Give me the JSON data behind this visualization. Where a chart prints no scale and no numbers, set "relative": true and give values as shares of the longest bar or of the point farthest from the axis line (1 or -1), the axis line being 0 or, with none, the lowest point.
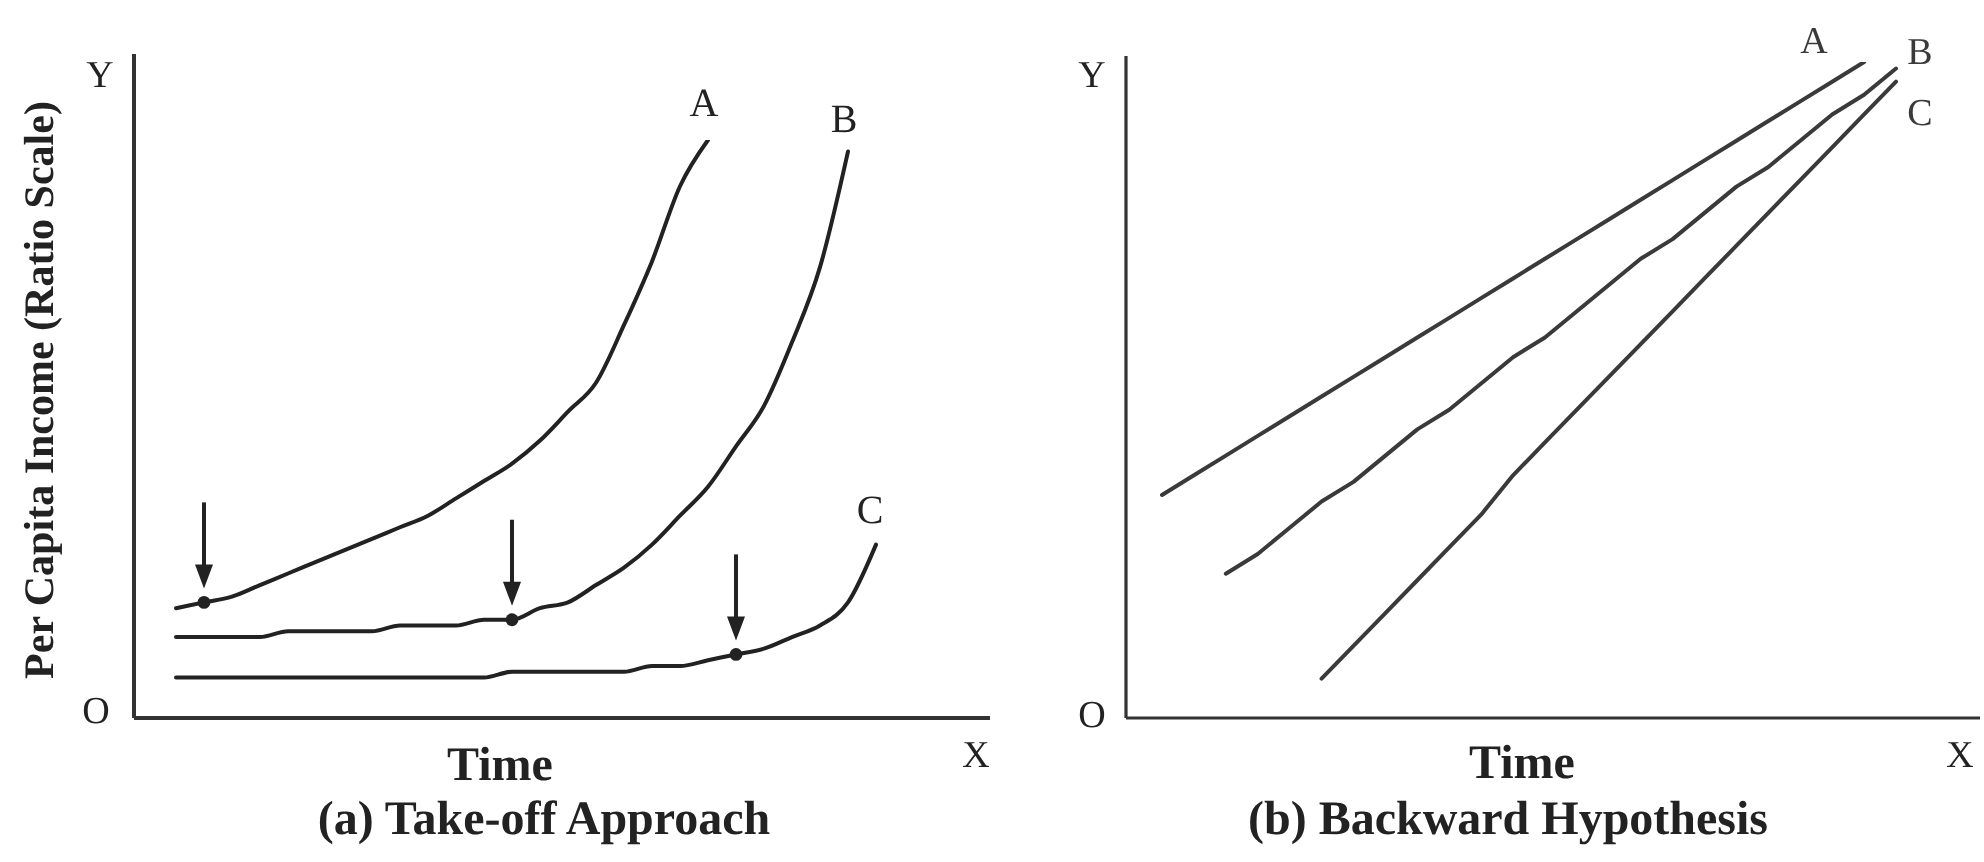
{
  "chart_data": [
    {
      "type": "line",
      "title": "(a) Take-off Approach",
      "xlabel": "Time",
      "ylabel": "Per Capita Income (Ratio Scale)",
      "annotations": [
        "Y",
        "O",
        "X"
      ],
      "relative": true,
      "categories": [
        null,
        null,
        null,
        null,
        null,
        null,
        null,
        null,
        null,
        null,
        null,
        null,
        null,
        null,
        null,
        null,
        null,
        null,
        null,
        null,
        null,
        null,
        null,
        null,
        null,
        null
      ],
      "series": [
        {
          "name": "A",
          "color": "#222222",
          "values": [
            0.19,
            0.2,
            0.21,
            0.23,
            0.25,
            0.27,
            0.29,
            0.31,
            0.33,
            0.35,
            0.38,
            0.41,
            0.44,
            0.48,
            0.53,
            0.58,
            0.68,
            0.79,
            0.92,
            1,
            null,
            null,
            null,
            null,
            null,
            null
          ]
        },
        {
          "name": "B",
          "color": "#222222",
          "values": [
            0.14,
            0.14,
            0.14,
            0.14,
            0.15,
            0.15,
            0.15,
            0.15,
            0.16,
            0.16,
            0.16,
            0.17,
            0.17,
            0.19,
            0.2,
            0.23,
            0.26,
            0.3,
            0.35,
            0.4,
            0.47,
            0.54,
            0.65,
            0.78,
            0.98,
            null
          ]
        },
        {
          "name": "C",
          "color": "#222222",
          "values": [
            0.07,
            0.07,
            0.07,
            0.07,
            0.07,
            0.07,
            0.07,
            0.07,
            0.07,
            0.07,
            0.07,
            0.07,
            0.08,
            0.08,
            0.08,
            0.08,
            0.08,
            0.09,
            0.09,
            0.1,
            0.11,
            0.12,
            0.14,
            0.16,
            0.2,
            0.3
          ]
        },
        {
          "marker": "circle",
          "color": "#222222",
          "values": [
            null,
            0.2,
            null,
            null,
            null,
            null,
            null,
            null,
            null,
            null,
            null,
            null,
            0.17,
            null,
            null,
            null,
            null,
            null,
            null,
            null,
            0.11,
            null,
            null,
            null,
            null,
            null
          ]
        }
      ]
    },
    {
      "type": "line",
      "title": "(b) Backward Hypothesis",
      "xlabel": "Time",
      "annotations": [
        "Y",
        "O",
        "X"
      ],
      "relative": true,
      "categories": [
        null,
        null,
        null,
        null,
        null,
        null,
        null,
        null,
        null,
        null,
        null,
        null,
        null,
        null,
        null,
        null,
        null,
        null,
        null,
        null,
        null,
        null,
        null,
        null
      ],
      "series": [
        {
          "name": "A",
          "color": "#3a3a3a",
          "values": [
            0.34,
            0.37,
            0.4,
            0.43,
            0.46,
            0.49,
            0.52,
            0.55,
            0.58,
            0.61,
            0.64,
            0.67,
            0.7,
            0.73,
            0.76,
            0.79,
            0.82,
            0.85,
            0.88,
            0.91,
            0.94,
            0.97,
            1,
            null
          ]
        },
        {
          "name": "B",
          "color": "#3a3a3a",
          "values": [
            null,
            null,
            0.22,
            0.25,
            0.29,
            0.33,
            0.36,
            0.4,
            0.44,
            0.47,
            0.51,
            0.55,
            0.58,
            0.62,
            0.66,
            0.7,
            0.73,
            0.77,
            0.81,
            0.84,
            0.88,
            0.92,
            0.95,
            0.99
          ]
        },
        {
          "name": "C",
          "color": "#3a3a3a",
          "values": [
            null,
            null,
            null,
            null,
            null,
            0.06,
            0.11,
            0.16,
            0.21,
            0.26,
            0.31,
            0.37,
            0.42,
            0.47,
            0.52,
            0.57,
            0.62,
            0.67,
            0.72,
            0.77,
            0.82,
            0.87,
            0.92,
            0.97
          ]
        }
      ]
    }
  ]
}
